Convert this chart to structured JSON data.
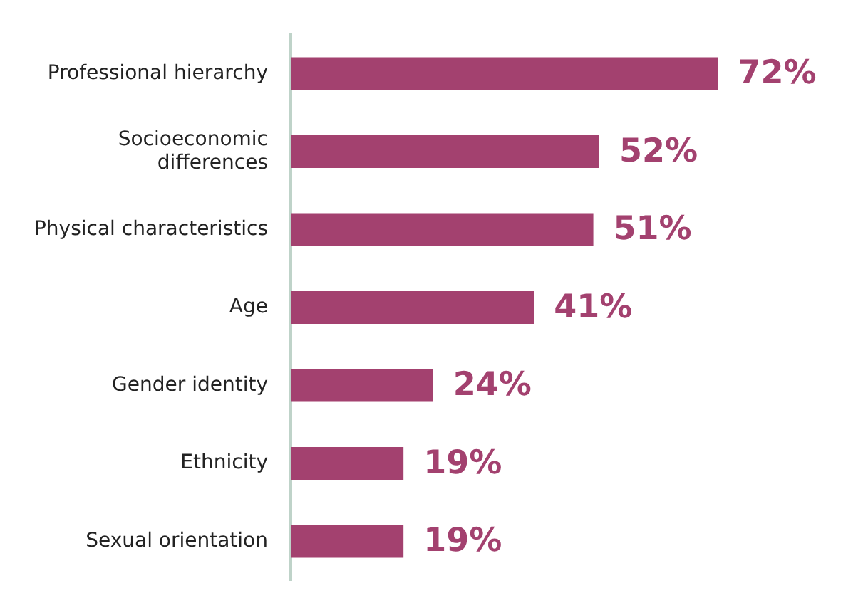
{
  "chart_data": {
    "type": "bar",
    "orientation": "horizontal",
    "categories": [
      "Professional hierarchy",
      "Socioeconomic\ndifferences",
      "Physical characteristics",
      "Age",
      "Gender identity",
      "Ethnicity",
      "Sexual orientation"
    ],
    "values": [
      72,
      52,
      51,
      41,
      24,
      19,
      19
    ],
    "value_labels": [
      "72%",
      "52%",
      "51%",
      "41%",
      "24%",
      "19%",
      "19%"
    ],
    "color": "#a3416f",
    "tick_labels": "y"
  }
}
